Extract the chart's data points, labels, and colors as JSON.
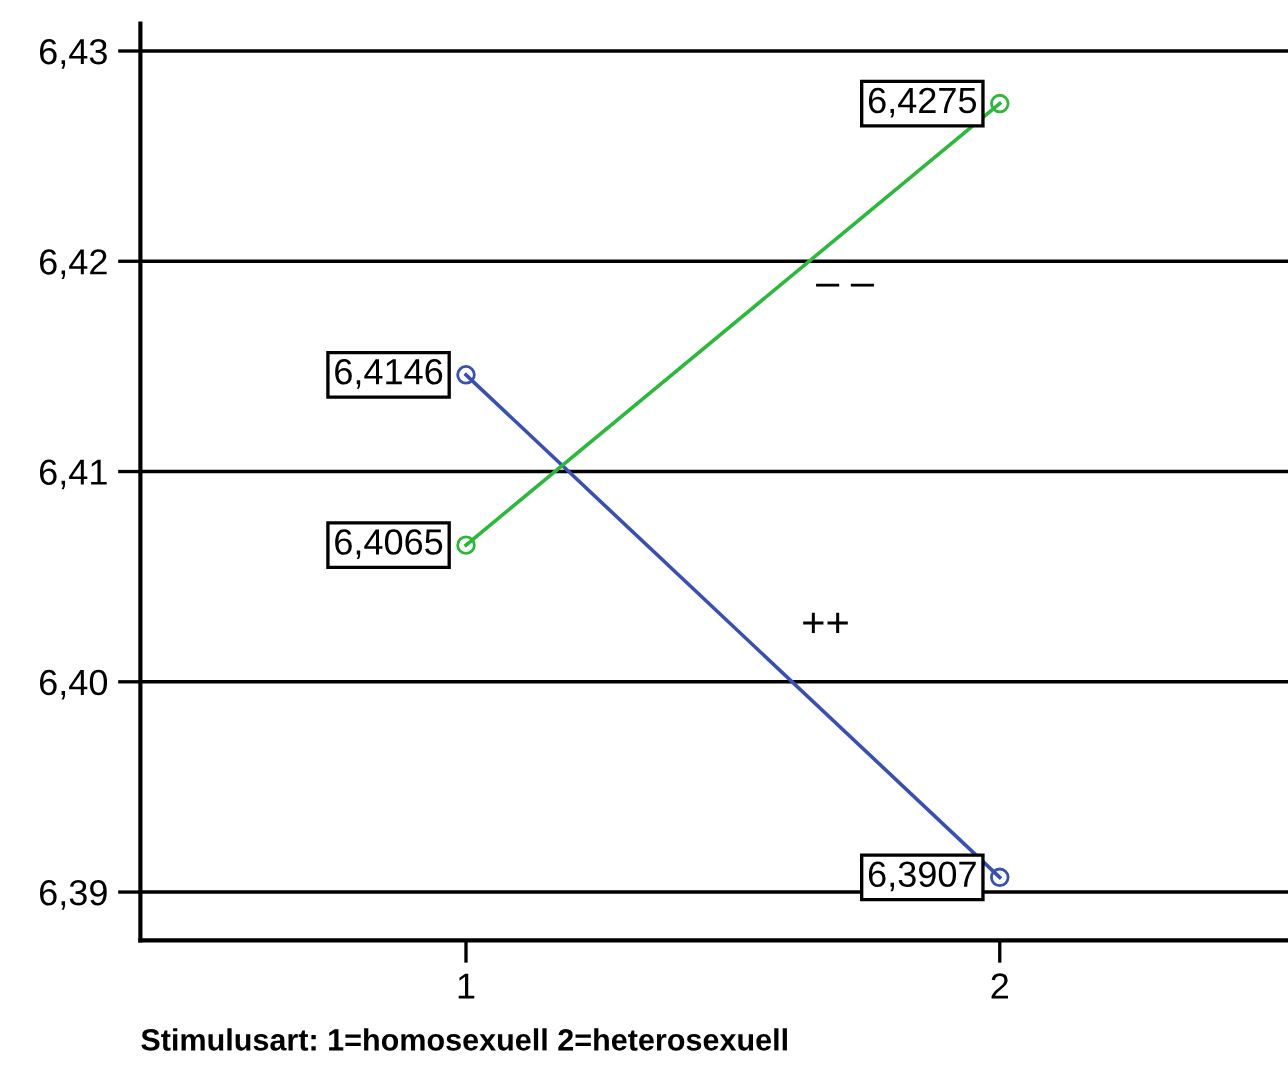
{
  "chart_data": {
    "type": "line",
    "xlabel": "Stimulusart: 1=homosexuell 2=heterosexuell",
    "x": [
      1,
      2
    ],
    "xlim": [
      0.39,
      2.54
    ],
    "xticks": [
      1,
      2
    ],
    "ylim": [
      6.3877,
      6.4313
    ],
    "yticks": [
      {
        "value": 6.39,
        "label": "6,39"
      },
      {
        "value": 6.4,
        "label": "6,40"
      },
      {
        "value": 6.41,
        "label": "6,41"
      },
      {
        "value": 6.42,
        "label": "6,42"
      },
      {
        "value": 6.43,
        "label": "6,43"
      }
    ],
    "series": [
      {
        "color": "#3a50b0",
        "values": [
          6.4146,
          6.3907
        ],
        "value_labels": [
          "6,4146",
          "6,3907"
        ]
      },
      {
        "color": "#2db83d",
        "values": [
          6.4065,
          6.4275
        ],
        "value_labels": [
          "6,4065",
          "6,4275"
        ]
      }
    ],
    "annotations": [
      "– –",
      "++"
    ],
    "grid": "y",
    "marker": "circle",
    "line_style": "solid"
  }
}
